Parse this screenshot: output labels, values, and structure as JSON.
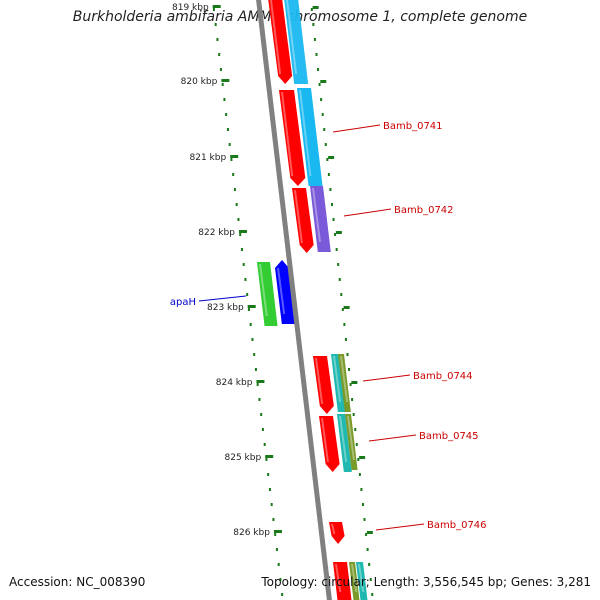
{
  "title": "Burkholderia ambifaria AMMD chromosome 1, complete genome",
  "accession": "Accession: NC_008390",
  "genome_stats": "Topology: circular; Length: 3,556,545 bp; Genes: 3,281",
  "colors": {
    "backbone": "#808080",
    "tick": "#1a7a1a",
    "label_red": "#cc0000",
    "label_blue": "#0000cc",
    "cds_red": "#ff0000",
    "cds_cyan": "#1ab8f0",
    "cds_purple": "#7a5ad8",
    "cds_green": "#33cc33",
    "cds_blue": "#0000ff",
    "cds_olive": "#7a9a2a",
    "cds_teal": "#20b8b0"
  },
  "ticks": [
    {
      "label": "819 kbp",
      "kbp": 819
    },
    {
      "label": "820 kbp",
      "kbp": 820
    },
    {
      "label": "821 kbp",
      "kbp": 821
    },
    {
      "label": "822 kbp",
      "kbp": 822
    },
    {
      "label": "823 kbp",
      "kbp": 823
    },
    {
      "label": "824 kbp",
      "kbp": 824
    },
    {
      "label": "825 kbp",
      "kbp": 825
    },
    {
      "label": "826 kbp",
      "kbp": 826
    }
  ],
  "genes": [
    {
      "name": "Bamb_0741",
      "labeled": true,
      "strand": "forward"
    },
    {
      "name": "Bamb_0742",
      "labeled": true,
      "strand": "forward"
    },
    {
      "name": "apaH",
      "labeled": true,
      "strand": "reverse"
    },
    {
      "name": "Bamb_0744",
      "labeled": true,
      "strand": "forward"
    },
    {
      "name": "Bamb_0745",
      "labeled": true,
      "strand": "forward"
    },
    {
      "name": "Bamb_0746",
      "labeled": true,
      "strand": "forward"
    }
  ]
}
